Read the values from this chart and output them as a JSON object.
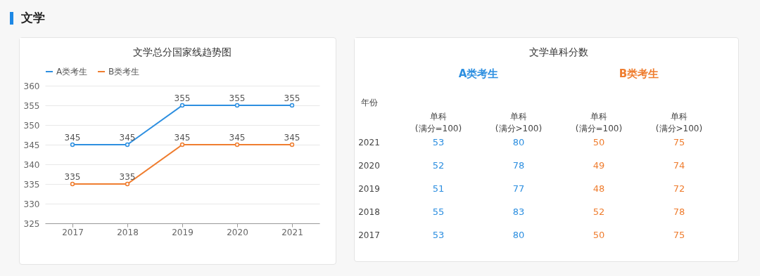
{
  "chart_data": [
    {
      "type": "line",
      "title": "文学总分国家线趋势图",
      "annotations": [
        "文学"
      ],
      "categories": [
        "2017",
        "2018",
        "2019",
        "2020",
        "2021"
      ],
      "series": [
        {
          "name": "A类考生",
          "color": "#2d8fe0",
          "values": [
            345,
            345,
            355,
            355,
            355
          ]
        },
        {
          "name": "B类考生",
          "color": "#ef7d2f",
          "values": [
            335,
            335,
            345,
            345,
            345
          ]
        }
      ],
      "ylim": [
        325,
        360
      ],
      "yticks": [
        325,
        330,
        335,
        340,
        345,
        350,
        355,
        360
      ],
      "grid": "y",
      "legend": "top",
      "marker": "circle",
      "data_labels": true
    },
    {
      "type": "heatmap",
      "title": "文学单科分数",
      "ylabel": "年份",
      "annotations": [
        "A类考生",
        "B类考生"
      ],
      "categories": [
        "单科\n(满分=100)",
        "单科\n(满分>100)",
        "单科\n(满分=100)",
        "单科\n(满分>100)"
      ],
      "y_categories": [
        "2021",
        "2020",
        "2019",
        "2018",
        "2017"
      ],
      "cells": [
        [
          53,
          80,
          50,
          75
        ],
        [
          52,
          78,
          49,
          74
        ],
        [
          51,
          77,
          48,
          72
        ],
        [
          55,
          83,
          52,
          78
        ],
        [
          53,
          80,
          50,
          75
        ]
      ],
      "colors": [
        "#2d8fe0",
        "#2d8fe0",
        "#ef7d2f",
        "#ef7d2f"
      ],
      "data_labels": true
    }
  ]
}
